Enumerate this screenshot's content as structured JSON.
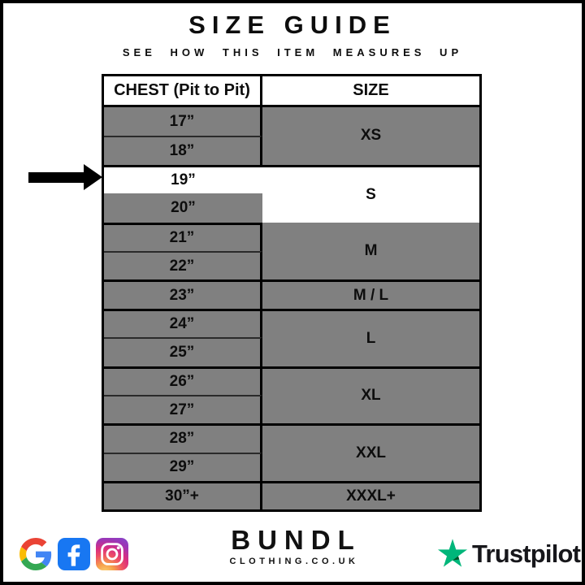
{
  "page": {
    "title": "SIZE GUIDE",
    "subtitle": "SEE HOW THIS ITEM MEASURES UP"
  },
  "table": {
    "columns": [
      "CHEST (Pit to Pit)",
      "SIZE"
    ],
    "groups": [
      {
        "chests": [
          "17”",
          "18”"
        ],
        "size": "XS"
      },
      {
        "chests": [
          "19”",
          "20”"
        ],
        "size": "S",
        "highlighted": true,
        "highlighted_chest": "19”"
      },
      {
        "chests": [
          "21”",
          "22”"
        ],
        "size": "M"
      },
      {
        "chests": [
          "23”"
        ],
        "size": "M / L"
      },
      {
        "chests": [
          "24”",
          "25”"
        ],
        "size": "L"
      },
      {
        "chests": [
          "26”",
          "27”"
        ],
        "size": "XL"
      },
      {
        "chests": [
          "28”",
          "29”"
        ],
        "size": "XXL"
      },
      {
        "chests": [
          "30”+"
        ],
        "size": "XXXL+"
      }
    ]
  },
  "chart_data": {
    "type": "table",
    "columns": [
      "CHEST (Pit to Pit)",
      "SIZE"
    ],
    "rows": [
      [
        "17”",
        "XS"
      ],
      [
        "18”",
        "XS"
      ],
      [
        "19”",
        "S"
      ],
      [
        "20”",
        "S"
      ],
      [
        "21”",
        "M"
      ],
      [
        "22”",
        "M"
      ],
      [
        "23”",
        "M / L"
      ],
      [
        "24”",
        "L"
      ],
      [
        "25”",
        "L"
      ],
      [
        "26”",
        "XL"
      ],
      [
        "27”",
        "XL"
      ],
      [
        "28”",
        "XXL"
      ],
      [
        "29”",
        "XXL"
      ],
      [
        "30”+",
        "XXXL+"
      ]
    ],
    "highlighted_row": [
      "19”",
      "S"
    ]
  },
  "arrow": {
    "points_to": "19”"
  },
  "footer": {
    "social_icons": [
      "google",
      "facebook",
      "instagram"
    ],
    "brand": {
      "name": "BUNDL",
      "tagline": "CLOTHING.CO.UK"
    },
    "trustpilot": {
      "label": "Trustpilot"
    }
  },
  "colors": {
    "cell_gray": "#808080",
    "highlight_white": "#ffffff",
    "border_black": "#000000",
    "facebook_blue": "#1877F2",
    "trustpilot_green": "#00B67A",
    "trustpilot_dark_green": "#005128"
  }
}
